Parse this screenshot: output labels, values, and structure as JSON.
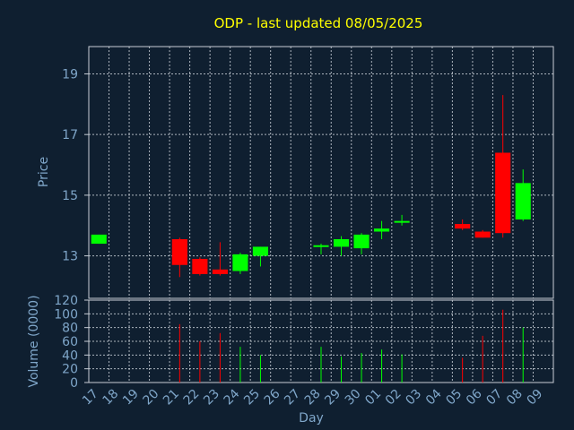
{
  "chart_data": {
    "type": "candlestick",
    "title": "ODP - last updated 08/05/2025",
    "xlabel": "Day",
    "colors": {
      "background": "#0f1f30",
      "title": "#ffff00",
      "axis_text": "#7fa6c9",
      "up": "#00ff00",
      "down": "#ff0000",
      "grid": "#c8ced6"
    },
    "x_ticks": [
      "17",
      "18",
      "19",
      "20",
      "21",
      "22",
      "23",
      "24",
      "25",
      "26",
      "27",
      "28",
      "29",
      "30",
      "01",
      "02",
      "03",
      "04",
      "05",
      "06",
      "07",
      "08",
      "09"
    ],
    "price_panel": {
      "ylabel": "Price",
      "ylim": [
        11.6,
        19.9
      ],
      "yticks": [
        13,
        15,
        17,
        19
      ],
      "candles": [
        {
          "x": "17",
          "open": 13.4,
          "close": 13.7,
          "high": 13.7,
          "low": 13.4
        },
        {
          "x": "21",
          "open": 13.55,
          "close": 12.7,
          "high": 13.6,
          "low": 12.3
        },
        {
          "x": "22",
          "open": 12.9,
          "close": 12.4,
          "high": 12.95,
          "low": 12.35
        },
        {
          "x": "23",
          "open": 12.55,
          "close": 12.4,
          "high": 13.45,
          "low": 12.35
        },
        {
          "x": "24",
          "open": 12.5,
          "close": 13.05,
          "high": 13.1,
          "low": 12.4
        },
        {
          "x": "25",
          "open": 13.0,
          "close": 13.3,
          "high": 13.3,
          "low": 12.65
        },
        {
          "x": "28",
          "open": 13.3,
          "close": 13.35,
          "high": 13.4,
          "low": 13.05
        },
        {
          "x": "29",
          "open": 13.3,
          "close": 13.55,
          "high": 13.65,
          "low": 13.0
        },
        {
          "x": "30",
          "open": 13.25,
          "close": 13.7,
          "high": 13.75,
          "low": 13.05
        },
        {
          "x": "01",
          "open": 13.8,
          "close": 13.9,
          "high": 14.15,
          "low": 13.55
        },
        {
          "x": "02",
          "open": 14.1,
          "close": 14.15,
          "high": 14.35,
          "low": 14.0
        },
        {
          "x": "05",
          "open": 14.05,
          "close": 13.9,
          "high": 14.2,
          "low": 13.85
        },
        {
          "x": "06",
          "open": 13.8,
          "close": 13.6,
          "high": 13.85,
          "low": 13.6
        },
        {
          "x": "07",
          "open": 16.4,
          "close": 13.75,
          "high": 18.3,
          "low": 13.6
        },
        {
          "x": "08",
          "open": 14.2,
          "close": 15.4,
          "high": 15.85,
          "low": 14.15
        }
      ]
    },
    "volume_panel": {
      "ylabel": "Volume (0000)",
      "ylim": [
        0,
        120
      ],
      "yticks": [
        0,
        20,
        40,
        60,
        80,
        100,
        120
      ],
      "bars": [
        {
          "x": "21",
          "value": 85,
          "color": "down"
        },
        {
          "x": "22",
          "value": 60,
          "color": "down"
        },
        {
          "x": "23",
          "value": 72,
          "color": "down"
        },
        {
          "x": "24",
          "value": 52,
          "color": "up"
        },
        {
          "x": "25",
          "value": 40,
          "color": "up"
        },
        {
          "x": "28",
          "value": 52,
          "color": "up"
        },
        {
          "x": "29",
          "value": 38,
          "color": "up"
        },
        {
          "x": "30",
          "value": 43,
          "color": "up"
        },
        {
          "x": "01",
          "value": 48,
          "color": "up"
        },
        {
          "x": "02",
          "value": 41,
          "color": "up"
        },
        {
          "x": "05",
          "value": 36,
          "color": "down"
        },
        {
          "x": "06",
          "value": 68,
          "color": "down"
        },
        {
          "x": "07",
          "value": 106,
          "color": "down"
        },
        {
          "x": "08",
          "value": 80,
          "color": "up"
        }
      ]
    }
  }
}
